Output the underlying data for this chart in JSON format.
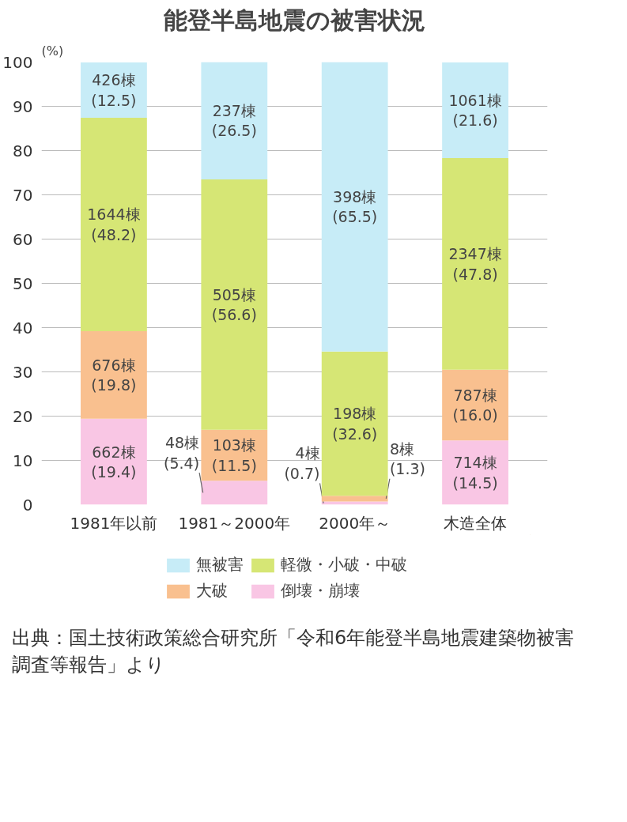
{
  "chart_data": {
    "type": "bar",
    "stacked": true,
    "title": "能登半島地震の被害状況",
    "ylabel": "(%)",
    "categories": [
      "1981年以前",
      "1981～2000年",
      "2000年～",
      "木造全体"
    ],
    "series": [
      {
        "name": "倒壊・崩壊",
        "color": "#f9c6e4",
        "values": [
          19.4,
          5.4,
          0.7,
          14.5
        ],
        "value_labels": [
          "662棟\n(19.4)",
          "48棟\n(5.4)",
          "4棟\n(0.7)",
          "714棟\n(14.5)"
        ]
      },
      {
        "name": "大破",
        "color": "#f9c08f",
        "values": [
          19.8,
          11.5,
          1.3,
          16.0
        ],
        "value_labels": [
          "676棟\n(19.8)",
          "103棟\n(11.5)",
          "8棟\n(1.3)",
          "787棟\n(16.0)"
        ]
      },
      {
        "name": "軽微・小破・中破",
        "color": "#d6e675",
        "values": [
          48.2,
          56.6,
          32.6,
          47.8
        ],
        "value_labels": [
          "1644棟\n(48.2)",
          "505棟\n(56.6)",
          "198棟\n(32.6)",
          "2347棟\n(47.8)"
        ]
      },
      {
        "name": "無被害",
        "color": "#c7ecf7",
        "values": [
          12.5,
          26.5,
          65.5,
          21.6
        ],
        "value_labels": [
          "426棟\n(12.5)",
          "237棟\n(26.5)",
          "398棟\n(65.5)",
          "1061棟\n(21.6)"
        ]
      }
    ],
    "ylim": [
      0,
      100
    ],
    "yticks": [
      0,
      10,
      20,
      30,
      40,
      50,
      60,
      70,
      80,
      90,
      100
    ],
    "grid": "y",
    "legend": "bottom",
    "annotations": [
      "出典：国土技術政策総合研究所「令和6年能登半島地震建築物被害調査等報告」より"
    ]
  }
}
